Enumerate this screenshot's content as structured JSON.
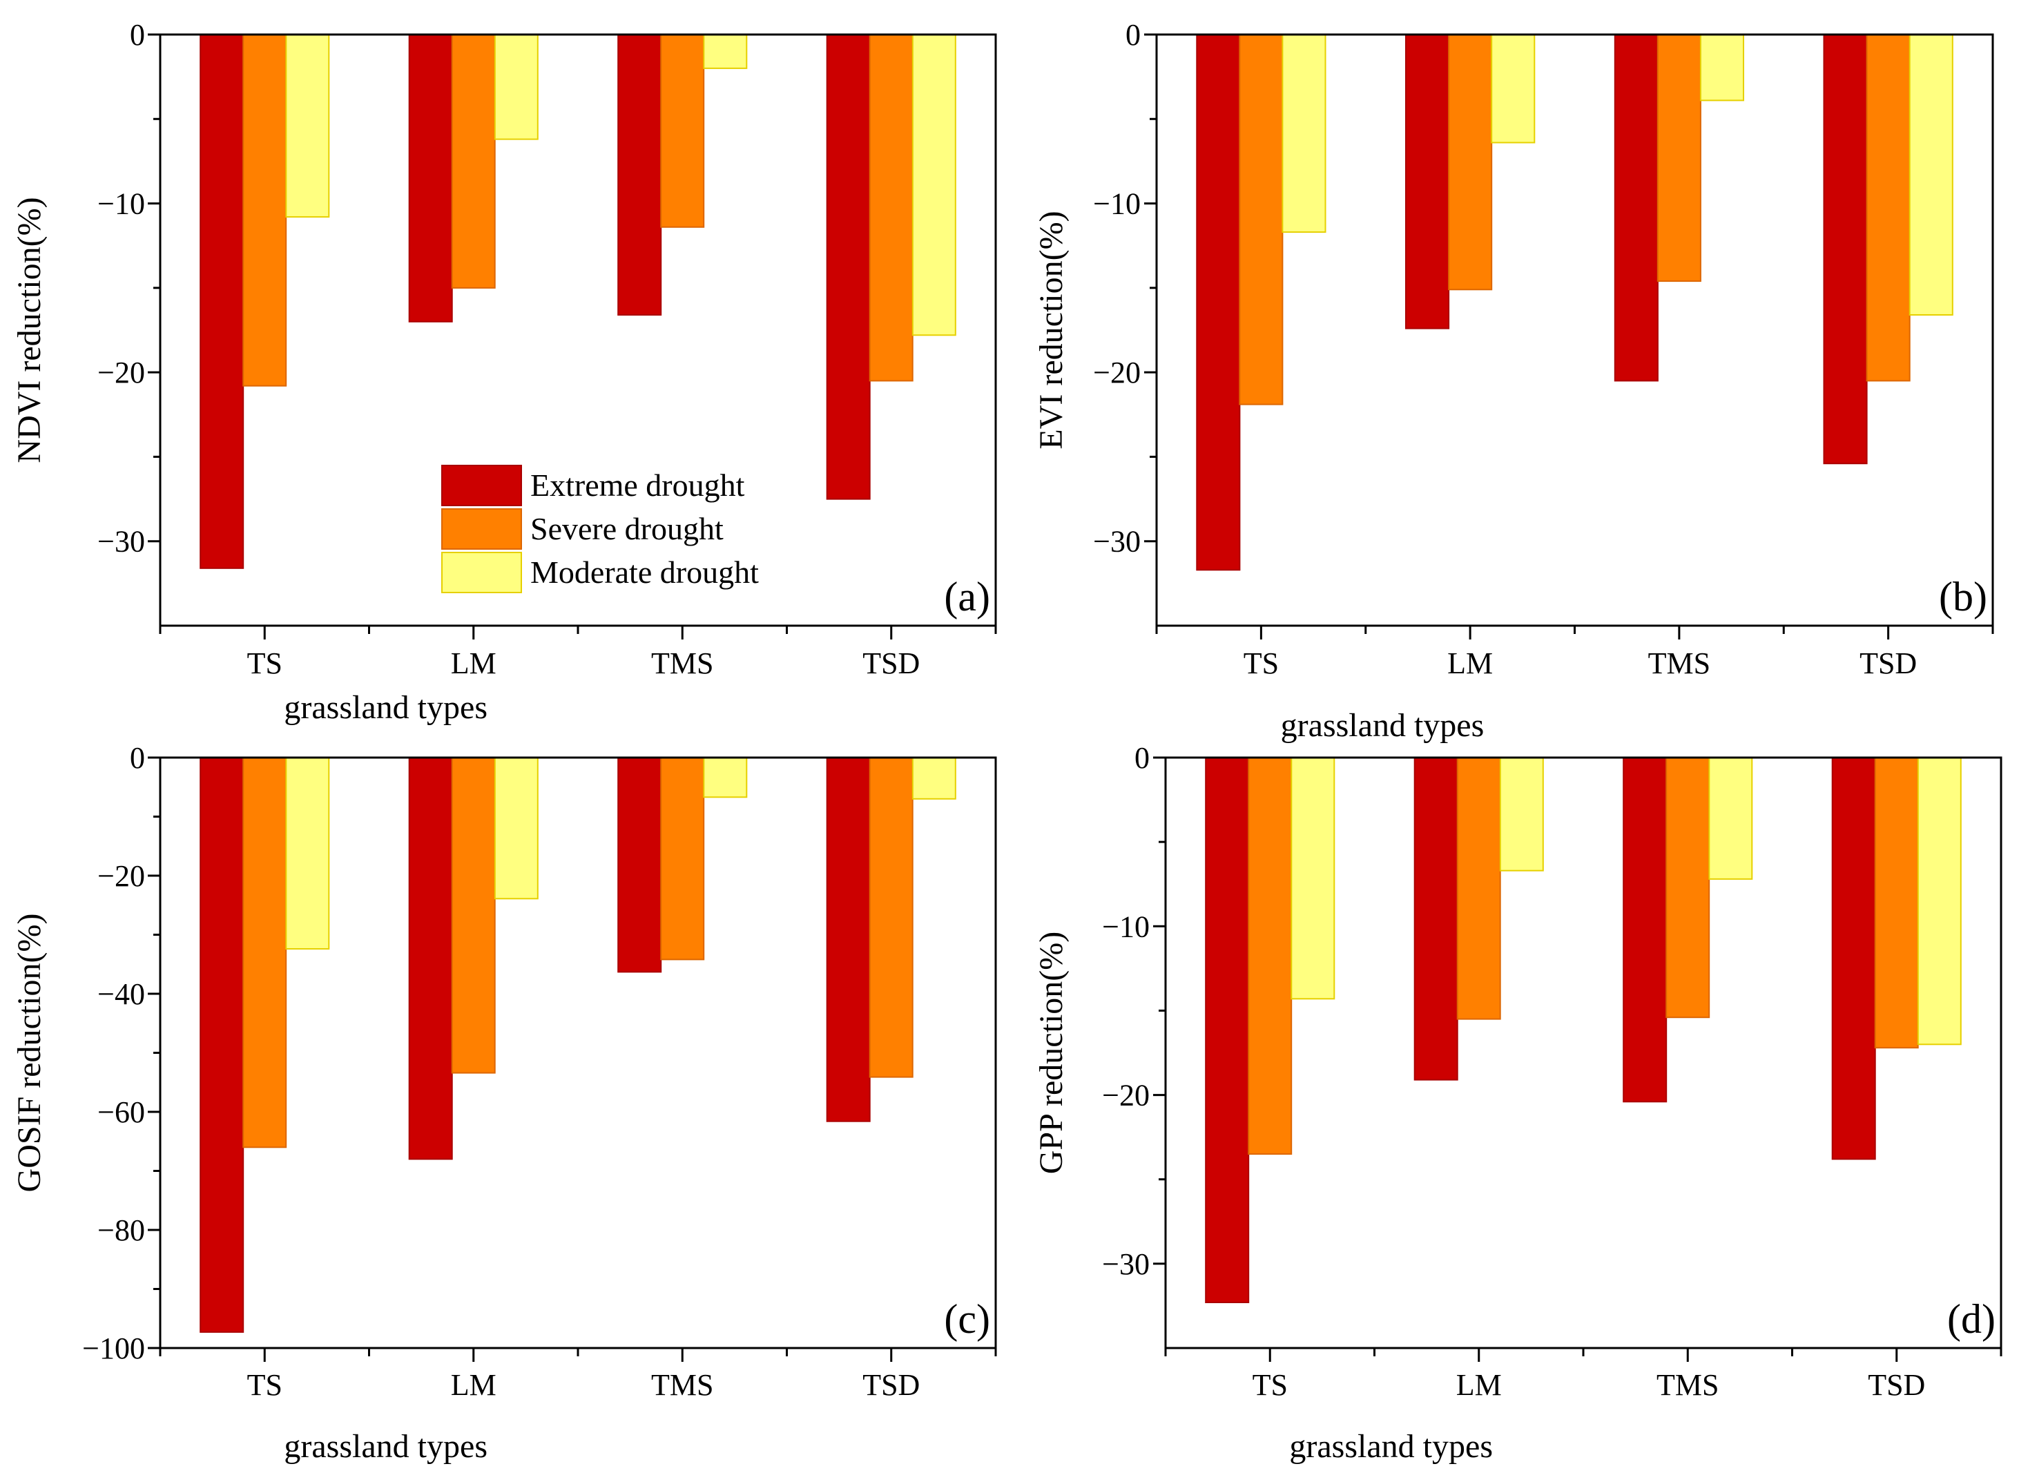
{
  "legend": {
    "entries": [
      {
        "name": "Extreme drought",
        "color": "#CC0000"
      },
      {
        "name": "Severe drought",
        "color": "#FF8000"
      },
      {
        "name": "Moderate drought",
        "color": "#FFFF80"
      }
    ],
    "placement": "inside panel (a), bottom-center"
  },
  "chart_data": [
    {
      "type": "bar",
      "panel_label": "(a)",
      "categories": [
        "TS",
        "LM",
        "TMS",
        "TSD"
      ],
      "xlabel": "grassland types",
      "ylabel": "NDVI reduction(%)",
      "ylim": [
        -35,
        0
      ],
      "yticks": [
        0,
        -10,
        -20,
        -30
      ],
      "yticklabels": [
        "0",
        "−10",
        "−20",
        "−30"
      ],
      "series": [
        {
          "name": "Extreme drought",
          "values": [
            -31.6,
            -17.0,
            -16.6,
            -27.5
          ]
        },
        {
          "name": "Severe drought",
          "values": [
            -20.8,
            -15.0,
            -11.4,
            -20.5
          ]
        },
        {
          "name": "Moderate drought",
          "values": [
            -10.8,
            -6.2,
            -2.0,
            -17.8
          ]
        }
      ]
    },
    {
      "type": "bar",
      "panel_label": "(b)",
      "categories": [
        "TS",
        "LM",
        "TMS",
        "TSD"
      ],
      "xlabel": "grassland types",
      "ylabel": "EVI reduction(%)",
      "ylim": [
        -35,
        0
      ],
      "yticks": [
        0,
        -10,
        -20,
        -30
      ],
      "yticklabels": [
        "0",
        "−10",
        "−20",
        "−30"
      ],
      "series": [
        {
          "name": "Extreme drought",
          "values": [
            -31.7,
            -17.4,
            -20.5,
            -25.4
          ]
        },
        {
          "name": "Severe drought",
          "values": [
            -21.9,
            -15.1,
            -14.6,
            -20.5
          ]
        },
        {
          "name": "Moderate drought",
          "values": [
            -11.7,
            -6.4,
            -3.9,
            -16.6
          ]
        }
      ]
    },
    {
      "type": "bar",
      "panel_label": "(c)",
      "categories": [
        "TS",
        "LM",
        "TMS",
        "TSD"
      ],
      "xlabel": "grassland types",
      "ylabel": "GOSIF reduction(%)",
      "ylim": [
        -100,
        0
      ],
      "yticks": [
        0,
        -20,
        -40,
        -60,
        -80,
        -100
      ],
      "yticklabels": [
        "0",
        "−20",
        "−40",
        "−60",
        "−80",
        "−100"
      ],
      "series": [
        {
          "name": "Extreme drought",
          "values": [
            -97.3,
            -68.0,
            -36.3,
            -61.6
          ]
        },
        {
          "name": "Severe drought",
          "values": [
            -66.0,
            -53.4,
            -34.2,
            -54.1
          ]
        },
        {
          "name": "Moderate drought",
          "values": [
            -32.4,
            -23.9,
            -6.7,
            -7.0
          ]
        }
      ]
    },
    {
      "type": "bar",
      "panel_label": "(d)",
      "categories": [
        "TS",
        "LM",
        "TMS",
        "TSD"
      ],
      "xlabel": "grassland types",
      "ylabel": "GPP reduction(%)",
      "ylim": [
        -35,
        0
      ],
      "yticks": [
        0,
        -10,
        -20,
        -30
      ],
      "yticklabels": [
        "0",
        "−10",
        "−20",
        "−30"
      ],
      "series": [
        {
          "name": "Extreme drought",
          "values": [
            -32.3,
            -19.1,
            -20.4,
            -23.8
          ]
        },
        {
          "name": "Severe drought",
          "values": [
            -23.5,
            -15.5,
            -15.4,
            -17.2
          ]
        },
        {
          "name": "Moderate drought",
          "values": [
            -14.3,
            -6.7,
            -7.2,
            -17.0
          ]
        }
      ]
    }
  ]
}
